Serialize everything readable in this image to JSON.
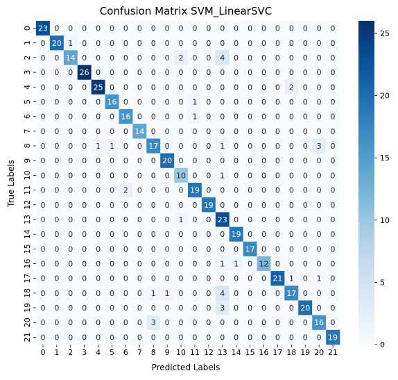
{
  "chart_data": {
    "type": "heatmap",
    "title": "Confusion Matrix SVM_LinearSVC",
    "xlabel": "Predicted Labels",
    "ylabel": "True Labels",
    "x_ticks": [
      "0",
      "1",
      "2",
      "3",
      "4",
      "5",
      "6",
      "7",
      "8",
      "9",
      "10",
      "11",
      "12",
      "13",
      "14",
      "15",
      "16",
      "17",
      "18",
      "19",
      "20",
      "21"
    ],
    "y_ticks": [
      "0",
      "1",
      "2",
      "3",
      "4",
      "5",
      "6",
      "7",
      "8",
      "9",
      "10",
      "11",
      "12",
      "13",
      "14",
      "15",
      "16",
      "17",
      "18",
      "19",
      "20",
      "21"
    ],
    "matrix": [
      [
        23,
        0,
        0,
        0,
        0,
        0,
        0,
        0,
        0,
        0,
        0,
        0,
        0,
        0,
        0,
        0,
        0,
        0,
        0,
        0,
        0,
        0
      ],
      [
        0,
        20,
        1,
        0,
        0,
        0,
        0,
        0,
        0,
        0,
        0,
        0,
        0,
        0,
        0,
        0,
        0,
        0,
        0,
        0,
        0,
        0
      ],
      [
        0,
        0,
        14,
        0,
        0,
        0,
        0,
        0,
        0,
        0,
        2,
        0,
        0,
        4,
        0,
        0,
        0,
        0,
        0,
        0,
        0,
        0
      ],
      [
        0,
        0,
        0,
        26,
        0,
        0,
        0,
        0,
        0,
        0,
        0,
        0,
        0,
        0,
        0,
        0,
        0,
        0,
        0,
        0,
        0,
        0
      ],
      [
        0,
        0,
        0,
        0,
        25,
        0,
        0,
        0,
        0,
        0,
        0,
        0,
        0,
        0,
        0,
        0,
        0,
        0,
        2,
        0,
        0,
        0
      ],
      [
        0,
        0,
        0,
        0,
        0,
        16,
        0,
        0,
        0,
        0,
        0,
        1,
        0,
        0,
        0,
        0,
        0,
        0,
        0,
        0,
        0,
        0
      ],
      [
        0,
        0,
        0,
        0,
        0,
        0,
        16,
        0,
        0,
        0,
        0,
        1,
        0,
        0,
        0,
        0,
        0,
        0,
        0,
        0,
        0,
        0
      ],
      [
        0,
        0,
        0,
        0,
        0,
        0,
        0,
        14,
        0,
        0,
        0,
        0,
        0,
        0,
        0,
        0,
        0,
        0,
        0,
        0,
        0,
        0
      ],
      [
        0,
        0,
        0,
        0,
        1,
        1,
        0,
        0,
        17,
        0,
        0,
        0,
        0,
        1,
        0,
        0,
        0,
        0,
        0,
        0,
        3,
        0
      ],
      [
        0,
        0,
        0,
        0,
        0,
        0,
        0,
        0,
        0,
        20,
        0,
        0,
        0,
        0,
        0,
        0,
        0,
        0,
        0,
        0,
        0,
        0
      ],
      [
        0,
        0,
        0,
        0,
        0,
        0,
        0,
        0,
        0,
        0,
        10,
        0,
        0,
        1,
        0,
        0,
        0,
        0,
        0,
        0,
        0,
        0
      ],
      [
        0,
        0,
        0,
        0,
        0,
        0,
        2,
        0,
        0,
        0,
        0,
        19,
        0,
        0,
        0,
        0,
        0,
        0,
        0,
        0,
        0,
        0
      ],
      [
        0,
        0,
        0,
        0,
        0,
        0,
        0,
        0,
        0,
        0,
        0,
        0,
        19,
        0,
        0,
        0,
        0,
        0,
        0,
        0,
        0,
        0
      ],
      [
        0,
        0,
        0,
        0,
        0,
        0,
        0,
        0,
        0,
        0,
        1,
        0,
        0,
        23,
        0,
        0,
        0,
        0,
        0,
        0,
        0,
        0
      ],
      [
        0,
        0,
        0,
        0,
        0,
        0,
        0,
        0,
        0,
        0,
        0,
        0,
        0,
        0,
        19,
        0,
        0,
        0,
        0,
        0,
        0,
        0
      ],
      [
        0,
        0,
        0,
        0,
        0,
        0,
        0,
        0,
        0,
        0,
        0,
        0,
        0,
        0,
        0,
        17,
        0,
        0,
        0,
        0,
        0,
        0
      ],
      [
        0,
        0,
        0,
        0,
        0,
        0,
        0,
        0,
        0,
        0,
        0,
        0,
        0,
        1,
        1,
        0,
        12,
        0,
        0,
        0,
        0,
        0
      ],
      [
        0,
        0,
        0,
        0,
        0,
        0,
        0,
        0,
        0,
        0,
        0,
        0,
        0,
        0,
        0,
        0,
        0,
        21,
        1,
        0,
        1,
        0
      ],
      [
        0,
        0,
        0,
        0,
        0,
        0,
        0,
        0,
        1,
        1,
        0,
        0,
        0,
        4,
        0,
        0,
        0,
        0,
        17,
        0,
        0,
        0
      ],
      [
        0,
        0,
        0,
        0,
        0,
        0,
        0,
        0,
        0,
        0,
        0,
        0,
        0,
        3,
        0,
        0,
        0,
        0,
        0,
        20,
        0,
        0
      ],
      [
        0,
        0,
        0,
        0,
        0,
        0,
        0,
        0,
        3,
        0,
        0,
        0,
        0,
        0,
        0,
        0,
        0,
        0,
        0,
        0,
        16,
        0
      ],
      [
        0,
        0,
        0,
        0,
        0,
        0,
        0,
        0,
        0,
        0,
        0,
        0,
        0,
        0,
        0,
        0,
        0,
        0,
        0,
        0,
        0,
        19
      ]
    ],
    "colorbar": {
      "vmin": 0,
      "vmax": 26,
      "ticks": [
        0,
        5,
        10,
        15,
        20,
        25
      ],
      "colormap": "Blues",
      "low_color": "#f7fbff",
      "high_color": "#08306b"
    },
    "grid": false
  }
}
